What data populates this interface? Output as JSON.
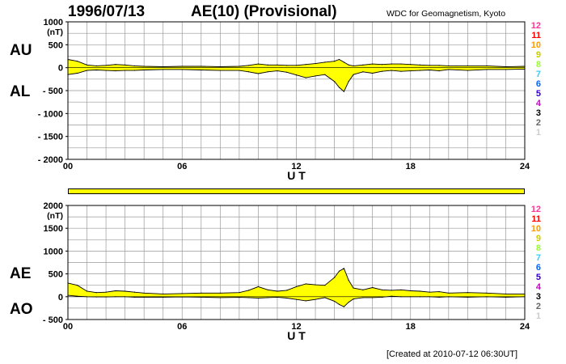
{
  "header": {
    "date": "1996/07/13",
    "title": "AE(10) (Provisional)",
    "source": "WDC for Geomagnetism, Kyoto"
  },
  "footer": {
    "created": "[Created at 2010-07-12 06:30UT]"
  },
  "colors": {
    "fill": "#ffff00",
    "grid": "#999999",
    "line": "#000000"
  },
  "station_count_legend": [
    {
      "label": "12",
      "color": "#ff3399"
    },
    {
      "label": "11",
      "color": "#ff0000"
    },
    {
      "label": "10",
      "color": "#ff9900"
    },
    {
      "label": "9",
      "color": "#cccc00"
    },
    {
      "label": "8",
      "color": "#99ff33"
    },
    {
      "label": "7",
      "color": "#33ccff"
    },
    {
      "label": "6",
      "color": "#0066ff"
    },
    {
      "label": "5",
      "color": "#3300cc"
    },
    {
      "label": "4",
      "color": "#cc00cc"
    },
    {
      "label": "3",
      "color": "#000000"
    },
    {
      "label": "2",
      "color": "#666666"
    },
    {
      "label": "1",
      "color": "#cccccc"
    }
  ],
  "station_coverage_bar": {
    "level": "10",
    "color": "#ffff00"
  },
  "chart_data": [
    {
      "type": "area",
      "series_labels": {
        "upper": "AU",
        "lower": "AL"
      },
      "ylabel": "(nT)",
      "xlabel": "U T",
      "xlim": [
        0,
        24
      ],
      "x_ticks": [
        "00",
        "06",
        "12",
        "18",
        "24"
      ],
      "ylim": [
        -2000,
        1000
      ],
      "y_ticks": [
        "1000",
        "500",
        "0",
        "- 500",
        "- 1000",
        "- 1500",
        "- 2000"
      ],
      "y_tick_values": [
        1000,
        500,
        0,
        -500,
        -1000,
        -1500,
        -2000
      ],
      "grid": true,
      "x": [
        0,
        0.5,
        1,
        1.5,
        2,
        2.5,
        3,
        3.5,
        4,
        5,
        6,
        7,
        8,
        9,
        9.5,
        10,
        10.5,
        11,
        11.5,
        12,
        12.5,
        13,
        13.5,
        14,
        14.25,
        14.5,
        14.75,
        15,
        15.5,
        16,
        16.5,
        17,
        17.5,
        18,
        18.5,
        19,
        19.5,
        20,
        21,
        22,
        23,
        24
      ],
      "upper": [
        180,
        140,
        60,
        40,
        50,
        70,
        60,
        40,
        30,
        20,
        30,
        30,
        20,
        30,
        50,
        80,
        60,
        60,
        50,
        50,
        70,
        90,
        120,
        140,
        180,
        120,
        60,
        40,
        60,
        80,
        70,
        80,
        80,
        70,
        60,
        50,
        50,
        40,
        40,
        40,
        20,
        30
      ],
      "lower": [
        -150,
        -120,
        -60,
        -50,
        -60,
        -70,
        -60,
        -60,
        -50,
        -40,
        -40,
        -50,
        -60,
        -60,
        -90,
        -130,
        -90,
        -70,
        -100,
        -160,
        -220,
        -180,
        -150,
        -300,
        -430,
        -520,
        -300,
        -150,
        -90,
        -120,
        -80,
        -60,
        -80,
        -70,
        -60,
        -50,
        -70,
        -40,
        -60,
        -40,
        -40,
        -30
      ]
    },
    {
      "type": "area",
      "series_labels": {
        "upper": "AE",
        "lower": "AO"
      },
      "ylabel": "(nT)",
      "xlabel": "U T",
      "xlim": [
        0,
        24
      ],
      "x_ticks": [
        "00",
        "06",
        "12",
        "18",
        "24"
      ],
      "ylim": [
        -500,
        2000
      ],
      "y_ticks": [
        "2000",
        "1500",
        "1000",
        "500",
        "0",
        "- 500"
      ],
      "y_tick_values": [
        2000,
        1500,
        1000,
        500,
        0,
        -500
      ],
      "grid": true,
      "x": [
        0,
        0.5,
        1,
        1.5,
        2,
        2.5,
        3,
        3.5,
        4,
        5,
        6,
        7,
        8,
        9,
        9.5,
        10,
        10.5,
        11,
        11.5,
        12,
        12.5,
        13,
        13.5,
        14,
        14.25,
        14.5,
        14.75,
        15,
        15.5,
        16,
        16.5,
        17,
        17.5,
        18,
        18.5,
        19,
        19.5,
        20,
        21,
        22,
        23,
        24
      ],
      "upper": [
        300,
        250,
        120,
        90,
        100,
        130,
        120,
        100,
        80,
        60,
        70,
        80,
        80,
        90,
        140,
        220,
        150,
        120,
        140,
        220,
        280,
        260,
        250,
        420,
        560,
        620,
        360,
        190,
        150,
        200,
        150,
        140,
        150,
        130,
        120,
        100,
        110,
        80,
        90,
        80,
        60,
        60
      ],
      "lower": [
        30,
        10,
        0,
        -5,
        -5,
        0,
        0,
        -10,
        -10,
        -10,
        -5,
        -10,
        -20,
        -15,
        -20,
        -30,
        -20,
        -10,
        -30,
        -60,
        -90,
        -60,
        -20,
        -100,
        -170,
        -220,
        -120,
        -50,
        -20,
        -20,
        -10,
        10,
        0,
        0,
        0,
        0,
        -10,
        0,
        -10,
        0,
        -10,
        0
      ]
    }
  ]
}
